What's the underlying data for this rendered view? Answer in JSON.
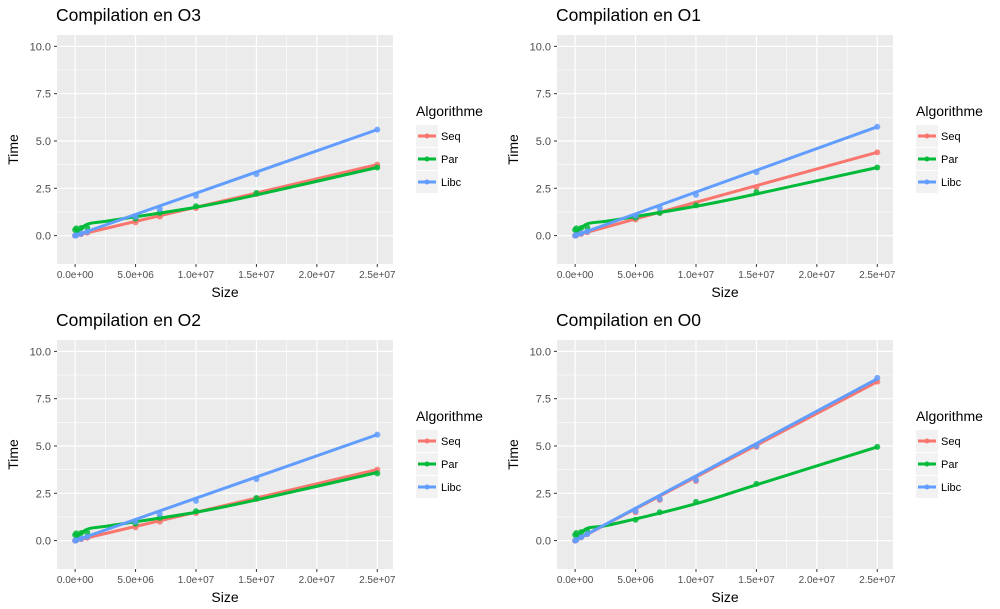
{
  "palette": {
    "panel_bg": "#EBEBEB",
    "grid": "#FFFFFF",
    "seq": "#F8766D",
    "par": "#00BA38",
    "libc": "#619CFF"
  },
  "legend": {
    "title": "Algorithme",
    "items": [
      {
        "key": "seq",
        "label": "Seq"
      },
      {
        "key": "par",
        "label": "Par"
      },
      {
        "key": "libc",
        "label": "Libc"
      }
    ]
  },
  "chart_data": [
    {
      "type": "line",
      "title": "Compilation en O3",
      "xlabel": "Size",
      "ylabel": "Time",
      "xlim": [
        -1500000,
        26300000
      ],
      "ylim": [
        -1.5,
        10.6
      ],
      "x_ticks": [
        0,
        5000000,
        10000000,
        15000000,
        20000000,
        25000000
      ],
      "x_tick_labels": [
        "0.0e+00",
        "5.0e+06",
        "1.0e+07",
        "1.5e+07",
        "2.0e+07",
        "2.5e+07"
      ],
      "y_ticks": [
        0,
        2.5,
        5,
        7.5,
        10
      ],
      "y_tick_labels": [
        "0.0",
        "2.5",
        "5.0",
        "7.5",
        "10.0"
      ],
      "x": [
        0,
        100000,
        500000,
        1000000,
        5000000,
        7000000,
        10000000,
        15000000,
        25000000
      ],
      "series": [
        {
          "name": "Seq",
          "key": "seq",
          "values": [
            0.0,
            0.02,
            0.08,
            0.15,
            0.7,
            1.0,
            1.45,
            2.2,
            3.75
          ]
        },
        {
          "name": "Par",
          "key": "par",
          "values": [
            0.3,
            0.38,
            0.4,
            0.42,
            0.9,
            1.2,
            1.55,
            2.25,
            3.6
          ]
        },
        {
          "name": "Libc",
          "key": "libc",
          "values": [
            0.0,
            0.02,
            0.1,
            0.2,
            1.0,
            1.4,
            2.1,
            3.25,
            5.6
          ]
        }
      ],
      "smooth": {
        "seq": [
          0.0,
          3.75
        ],
        "par": [
          0.08,
          0.6,
          0.8,
          1.5,
          2.15,
          3.6
        ],
        "libc": [
          0.0,
          5.6
        ]
      }
    },
    {
      "type": "line",
      "title": "Compilation en O1",
      "xlabel": "Size",
      "ylabel": "Time",
      "xlim": [
        -1500000,
        26300000
      ],
      "ylim": [
        -1.5,
        10.6
      ],
      "x_ticks": [
        0,
        5000000,
        10000000,
        15000000,
        20000000,
        25000000
      ],
      "x_tick_labels": [
        "0.0e+00",
        "5.0e+06",
        "1.0e+07",
        "1.5e+07",
        "2.0e+07",
        "2.5e+07"
      ],
      "y_ticks": [
        0,
        2.5,
        5,
        7.5,
        10
      ],
      "y_tick_labels": [
        "0.0",
        "2.5",
        "5.0",
        "7.5",
        "10.0"
      ],
      "x": [
        0,
        100000,
        500000,
        1000000,
        5000000,
        7000000,
        10000000,
        15000000,
        25000000
      ],
      "series": [
        {
          "name": "Seq",
          "key": "seq",
          "values": [
            0.0,
            0.02,
            0.09,
            0.18,
            0.85,
            1.2,
            1.7,
            2.55,
            4.4
          ]
        },
        {
          "name": "Par",
          "key": "par",
          "values": [
            0.3,
            0.38,
            0.4,
            0.43,
            0.95,
            1.2,
            1.6,
            2.3,
            3.6
          ]
        },
        {
          "name": "Libc",
          "key": "libc",
          "values": [
            0.0,
            0.03,
            0.12,
            0.22,
            1.05,
            1.45,
            2.15,
            3.35,
            5.75
          ]
        }
      ],
      "smooth": {
        "seq": [
          0.0,
          4.4
        ],
        "par": [
          0.1,
          0.62,
          0.8,
          1.55,
          2.2,
          3.6
        ],
        "libc": [
          0.0,
          5.75
        ]
      }
    },
    {
      "type": "line",
      "title": "Compilation en O2",
      "xlabel": "Size",
      "ylabel": "Time",
      "xlim": [
        -1500000,
        26300000
      ],
      "ylim": [
        -1.5,
        10.6
      ],
      "x_ticks": [
        0,
        5000000,
        10000000,
        15000000,
        20000000,
        25000000
      ],
      "x_tick_labels": [
        "0.0e+00",
        "5.0e+06",
        "1.0e+07",
        "1.5e+07",
        "2.0e+07",
        "2.5e+07"
      ],
      "y_ticks": [
        0,
        2.5,
        5,
        7.5,
        10
      ],
      "y_tick_labels": [
        "0.0",
        "2.5",
        "5.0",
        "7.5",
        "10.0"
      ],
      "x": [
        0,
        100000,
        500000,
        1000000,
        5000000,
        7000000,
        10000000,
        15000000,
        25000000
      ],
      "series": [
        {
          "name": "Seq",
          "key": "seq",
          "values": [
            0.0,
            0.02,
            0.08,
            0.15,
            0.7,
            1.0,
            1.45,
            2.2,
            3.75
          ]
        },
        {
          "name": "Par",
          "key": "par",
          "values": [
            0.3,
            0.38,
            0.4,
            0.42,
            0.9,
            1.2,
            1.55,
            2.25,
            3.55
          ]
        },
        {
          "name": "Libc",
          "key": "libc",
          "values": [
            0.0,
            0.02,
            0.1,
            0.2,
            1.0,
            1.4,
            2.1,
            3.25,
            5.6
          ]
        }
      ],
      "smooth": {
        "seq": [
          0.0,
          3.75
        ],
        "par": [
          0.08,
          0.6,
          0.8,
          1.5,
          2.15,
          3.6
        ],
        "libc": [
          0.0,
          5.6
        ]
      }
    },
    {
      "type": "line",
      "title": "Compilation en O0",
      "xlabel": "Size",
      "ylabel": "Time",
      "xlim": [
        -1500000,
        26300000
      ],
      "ylim": [
        -1.5,
        10.6
      ],
      "x_ticks": [
        0,
        5000000,
        10000000,
        15000000,
        20000000,
        25000000
      ],
      "x_tick_labels": [
        "0.0e+00",
        "5.0e+06",
        "1.0e+07",
        "1.5e+07",
        "2.0e+07",
        "2.5e+07"
      ],
      "y_ticks": [
        0,
        2.5,
        5,
        7.5,
        10
      ],
      "y_tick_labels": [
        "0.0",
        "2.5",
        "5.0",
        "7.5",
        "10.0"
      ],
      "x": [
        0,
        100000,
        500000,
        1000000,
        5000000,
        7000000,
        10000000,
        15000000,
        25000000
      ],
      "series": [
        {
          "name": "Seq",
          "key": "seq",
          "values": [
            0.0,
            0.04,
            0.17,
            0.34,
            1.5,
            2.15,
            3.15,
            4.95,
            8.4
          ]
        },
        {
          "name": "Par",
          "key": "par",
          "values": [
            0.3,
            0.4,
            0.45,
            0.5,
            1.1,
            1.5,
            2.05,
            3.0,
            4.95
          ]
        },
        {
          "name": "Libc",
          "key": "libc",
          "values": [
            0.0,
            0.04,
            0.18,
            0.35,
            1.55,
            2.2,
            3.2,
            5.0,
            8.6
          ]
        }
      ],
      "smooth": {
        "seq": [
          0.0,
          8.4
        ],
        "par": [
          0.1,
          0.65,
          0.85,
          1.95,
          2.95,
          4.95
        ],
        "libc": [
          0.0,
          8.55
        ]
      }
    }
  ]
}
